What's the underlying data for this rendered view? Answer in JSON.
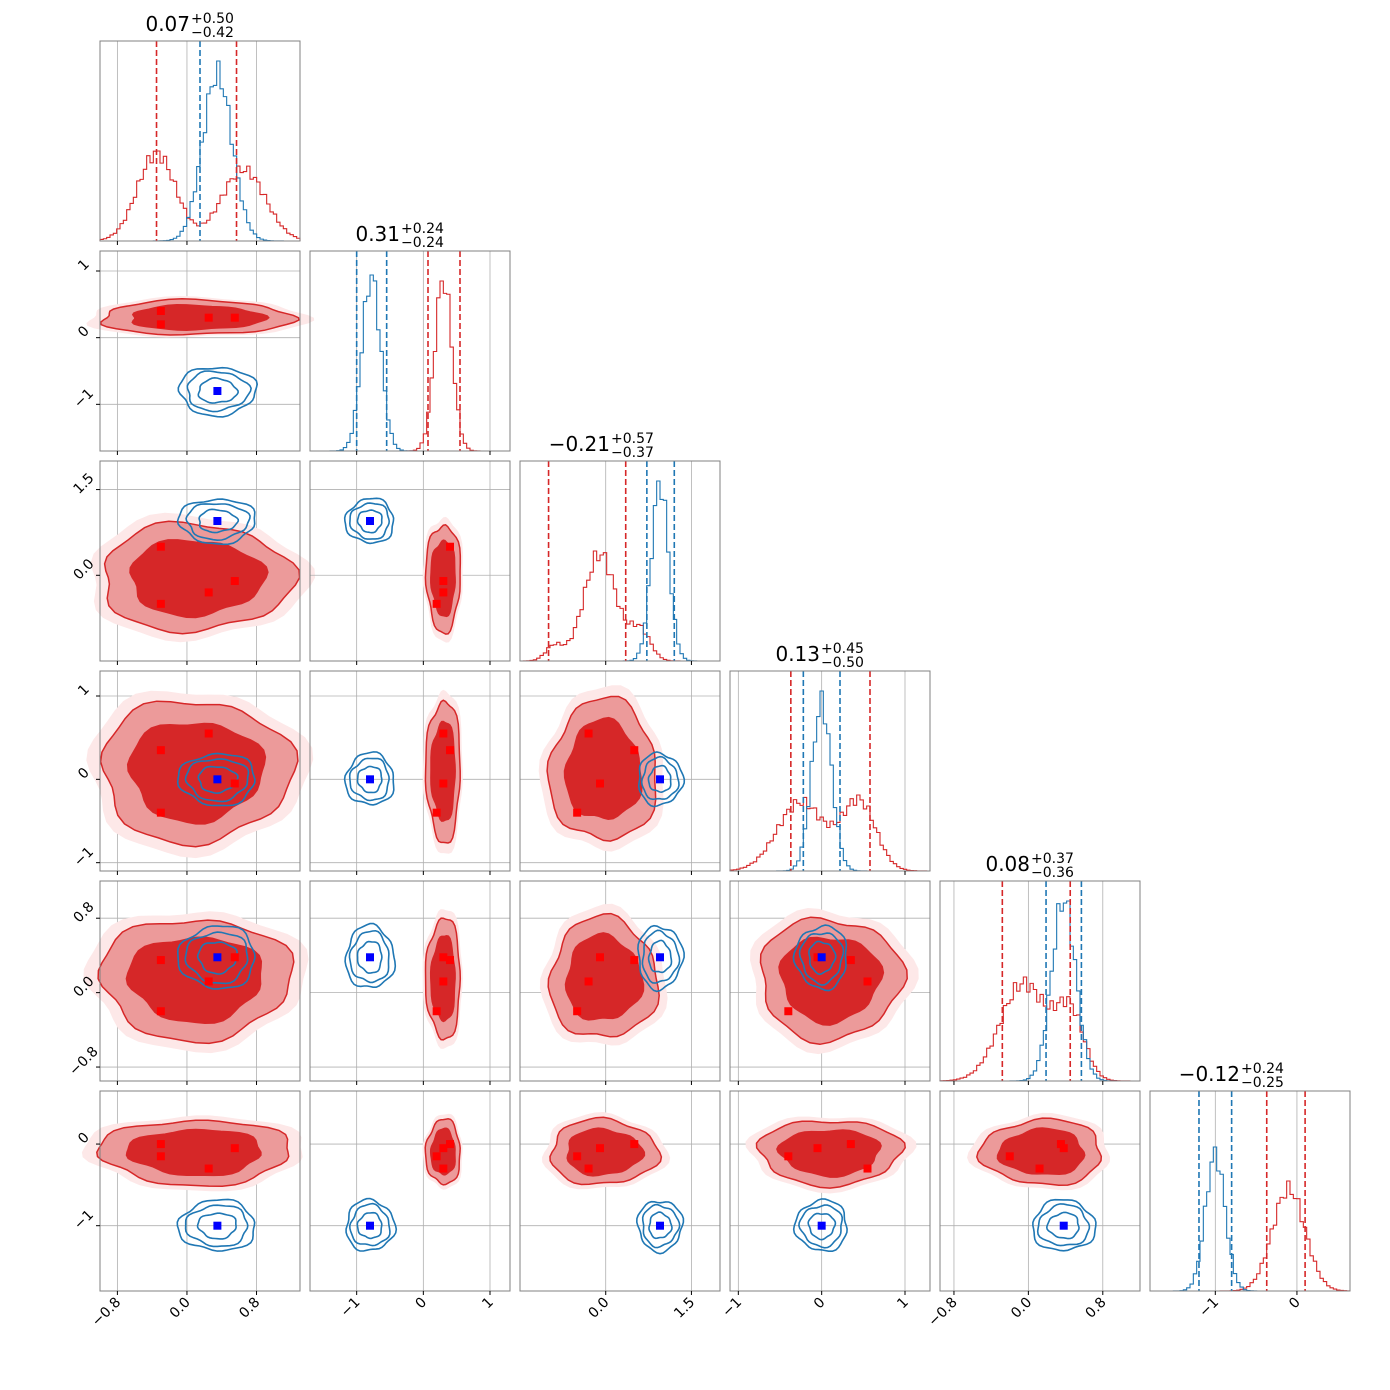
{
  "chart_data": {
    "type": "corner",
    "n_params": 6,
    "series": [
      {
        "name": "",
        "color": "#d62728"
      },
      {
        "name": "",
        "color": "#1f77b4"
      }
    ],
    "titles": [
      {
        "value": "0.07",
        "plus": "+0.50",
        "minus": "−0.42"
      },
      {
        "value": "0.31",
        "plus": "+0.24",
        "minus": "−0.24"
      },
      {
        "value": "−0.21",
        "plus": "+0.57",
        "minus": "−0.37"
      },
      {
        "value": "0.13",
        "plus": "+0.45",
        "minus": "−0.50"
      },
      {
        "value": "0.08",
        "plus": "+0.37",
        "minus": "−0.36"
      },
      {
        "value": "−0.12",
        "plus": "+0.24",
        "minus": "−0.25"
      }
    ],
    "ranges": [
      [
        -1.0,
        1.3
      ],
      [
        -1.7,
        1.3
      ],
      [
        -1.5,
        2.0
      ],
      [
        -1.1,
        1.3
      ],
      [
        -0.95,
        1.2
      ],
      [
        -1.8,
        0.65
      ]
    ],
    "ticks": [
      {
        "values": [
          -0.8,
          0.0,
          0.8
        ],
        "labels": [
          "−0.8",
          "0.0",
          "0.8"
        ]
      },
      {
        "values": [
          -1,
          0,
          1
        ],
        "labels": [
          "−1",
          "0",
          "1"
        ]
      },
      {
        "values": [
          0.0,
          1.5
        ],
        "labels": [
          "0.0",
          "1.5"
        ]
      },
      {
        "values": [
          -1,
          0,
          1
        ],
        "labels": [
          "−1",
          "0",
          "1"
        ]
      },
      {
        "values": [
          -0.8,
          0.0,
          0.8
        ],
        "labels": [
          "−0.8",
          "0.0",
          "0.8"
        ]
      },
      {
        "values": [
          -1,
          0
        ],
        "labels": [
          "−1",
          "0"
        ]
      }
    ],
    "grid": true,
    "red_quantiles": [
      [
        -0.35,
        0.57
      ],
      [
        0.07,
        0.55
      ],
      [
        -1.0,
        0.35
      ],
      [
        -0.37,
        0.58
      ],
      [
        -0.28,
        0.45
      ],
      [
        -0.37,
        0.1
      ]
    ],
    "blue_quantiles": [
      [
        0.15,
        null
      ],
      [
        -1.0,
        -0.55
      ],
      [
        0.72,
        1.2
      ],
      [
        -0.22,
        0.22
      ],
      [
        0.19,
        0.57
      ],
      [
        -1.2,
        -0.8
      ]
    ],
    "red_modes": [
      [
        {
          "mu": -0.35,
          "sd": 0.22,
          "w": 0.55
        },
        {
          "mu": 0.65,
          "sd": 0.25,
          "w": 0.45
        }
      ],
      [
        {
          "mu": 0.3,
          "sd": 0.13,
          "w": 1.0
        }
      ],
      [
        {
          "mu": -0.1,
          "sd": 0.28,
          "w": 0.7
        },
        {
          "mu": 0.6,
          "sd": 0.18,
          "w": 0.2
        },
        {
          "mu": -0.9,
          "sd": 0.15,
          "w": 0.1
        }
      ],
      [
        {
          "mu": -0.25,
          "sd": 0.28,
          "w": 0.5
        },
        {
          "mu": 0.45,
          "sd": 0.2,
          "w": 0.5
        }
      ],
      [
        {
          "mu": -0.05,
          "sd": 0.25,
          "w": 0.6
        },
        {
          "mu": 0.45,
          "sd": 0.15,
          "w": 0.4
        }
      ],
      [
        {
          "mu": -0.1,
          "sd": 0.2,
          "w": 1.0
        }
      ]
    ],
    "blue_modes": [
      [
        {
          "mu": 0.35,
          "sd": 0.17,
          "w": 1.0
        }
      ],
      [
        {
          "mu": -0.78,
          "sd": 0.14,
          "w": 1.0
        }
      ],
      [
        {
          "mu": 0.95,
          "sd": 0.15,
          "w": 1.0
        }
      ],
      [
        {
          "mu": 0.0,
          "sd": 0.12,
          "w": 1.0
        }
      ],
      [
        {
          "mu": 0.38,
          "sd": 0.13,
          "w": 1.0
        }
      ],
      [
        {
          "mu": -1.0,
          "sd": 0.12,
          "w": 1.0
        }
      ]
    ],
    "blue_truth": [
      0.35,
      -0.8,
      0.95,
      0.0,
      0.38,
      -1.0
    ],
    "red_truths": [
      [
        -0.3,
        -0.3,
        0.25,
        0.55
      ],
      [
        0.4,
        0.2,
        0.3,
        0.3
      ],
      [
        0.5,
        -0.5,
        -0.3,
        -0.1
      ],
      [
        0.35,
        -0.4,
        0.55,
        -0.05
      ],
      [
        0.35,
        -0.2,
        0.12,
        0.38
      ],
      [
        0.0,
        -0.15,
        -0.3,
        -0.05
      ]
    ]
  }
}
